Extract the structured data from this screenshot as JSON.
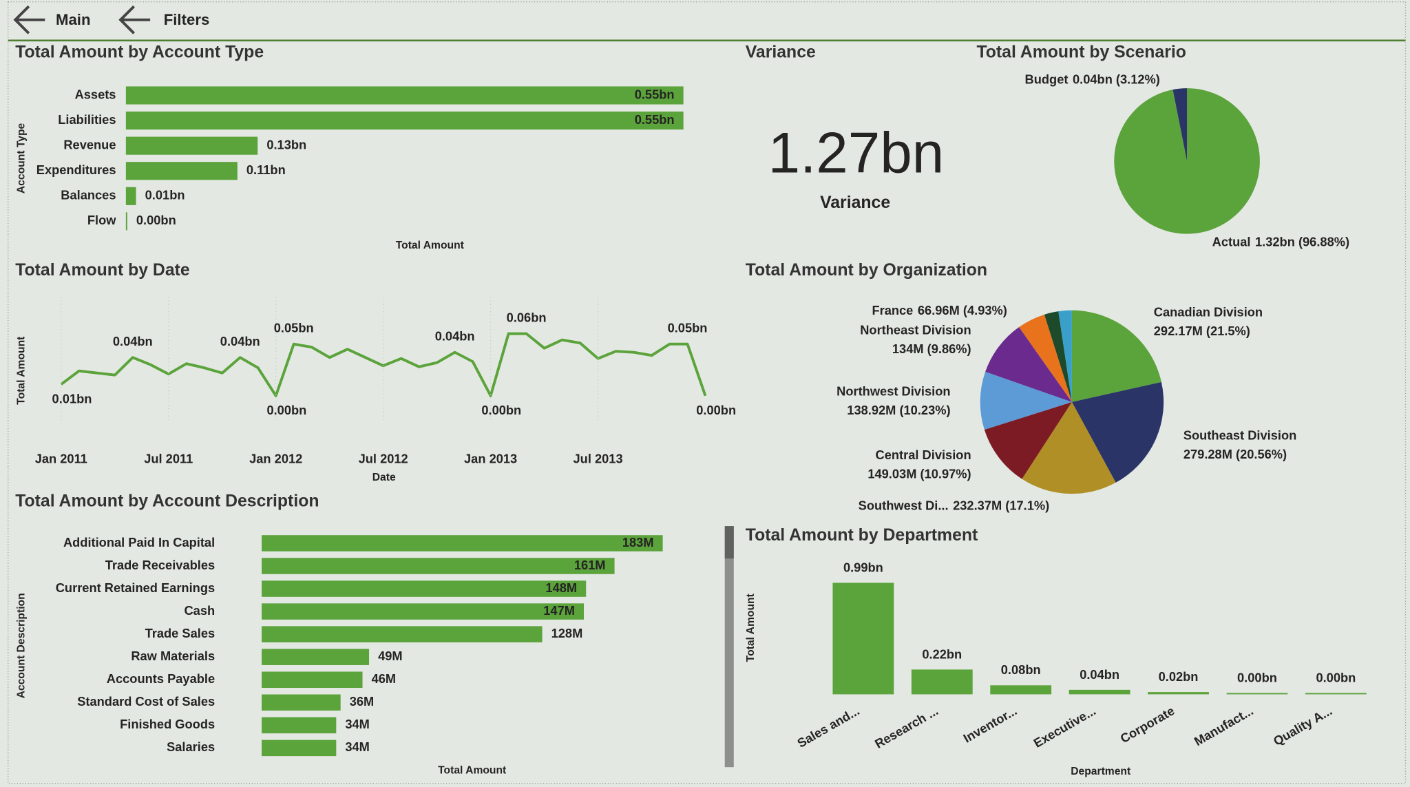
{
  "nav": [
    "Main",
    "Filters"
  ],
  "kpi": {
    "title": "Variance",
    "value": "1.27bn",
    "caption": "Variance"
  },
  "chart_data": [
    {
      "type": "hbar",
      "title": "Total Amount by Account Type",
      "y_label": "Account Type",
      "x_label": "Total Amount",
      "categories": [
        "Assets",
        "Liabilities",
        "Revenue",
        "Expenditures",
        "Balances",
        "Flow"
      ],
      "values": [
        0.55,
        0.55,
        0.13,
        0.11,
        0.01,
        0.0
      ],
      "value_labels": [
        "0.55bn",
        "0.55bn",
        "0.13bn",
        "0.11bn",
        "0.01bn",
        "0.00bn"
      ],
      "color": "#5ba33b"
    },
    {
      "type": "line",
      "title": "Total Amount by Date",
      "y_label": "Total Amount",
      "x_label": "Date",
      "categories": [
        "Jan 2011",
        null,
        null,
        null,
        null,
        null,
        "Jul 2011",
        null,
        null,
        null,
        null,
        null,
        "Jan 2012",
        null,
        null,
        null,
        null,
        null,
        "Jul 2012",
        null,
        null,
        null,
        null,
        null,
        "Jan 2013",
        null,
        null,
        null,
        null,
        null,
        "Jul 2013",
        null,
        null,
        null,
        null,
        null,
        null
      ],
      "values": [
        0.011,
        0.024,
        0.022,
        0.02,
        0.037,
        0.03,
        0.021,
        0.031,
        0.027,
        0.022,
        0.037,
        0.027,
        0.0,
        0.05,
        0.047,
        0.037,
        0.045,
        0.037,
        0.029,
        0.036,
        0.028,
        0.032,
        0.042,
        0.033,
        0.0,
        0.06,
        0.06,
        0.046,
        0.054,
        0.051,
        0.036,
        0.043,
        0.042,
        0.039,
        0.05,
        0.05,
        0.0
      ],
      "value_labels": [
        "0.01bn",
        null,
        null,
        null,
        "0.04bn",
        null,
        null,
        null,
        null,
        null,
        "0.04bn",
        null,
        "0.00bn",
        "0.05bn",
        null,
        null,
        null,
        null,
        null,
        null,
        null,
        null,
        "0.04bn",
        null,
        "0.00bn",
        null,
        "0.06bn",
        null,
        null,
        null,
        null,
        null,
        null,
        null,
        null,
        "0.05bn",
        "0.00bn"
      ],
      "color": "#5ba33b"
    },
    {
      "type": "hbar",
      "title": "Total Amount by Account Description",
      "y_label": "Account Description",
      "x_label": "Total Amount",
      "categories": [
        "Additional Paid In Capital",
        "Trade Receivables",
        "Current Retained Earnings",
        "Cash",
        "Trade Sales",
        "Raw Materials",
        "Accounts Payable",
        "Standard Cost of Sales",
        "Finished Goods",
        "Salaries"
      ],
      "values": [
        183,
        161,
        148,
        147,
        128,
        49,
        46,
        36,
        34,
        34
      ],
      "value_labels": [
        "183M",
        "161M",
        "148M",
        "147M",
        "128M",
        "49M",
        "46M",
        "36M",
        "34M",
        "34M"
      ],
      "color": "#5ba33b"
    },
    {
      "type": "pie",
      "title": "Total Amount by Scenario",
      "categories": [
        "Actual",
        "Budget"
      ],
      "values": [
        96.88,
        3.12
      ],
      "value_labels": [
        "1.32bn (96.88%)",
        "0.04bn (3.12%)"
      ],
      "colors": [
        "#5ba33b",
        "#2b3467"
      ]
    },
    {
      "type": "pie",
      "title": "Total Amount by Organization",
      "categories": [
        "Canadian Division",
        "Southeast Division",
        "Southwest Di...",
        "Central Division",
        "Northwest Division",
        "Northeast Division",
        "France",
        null,
        null
      ],
      "values": [
        21.5,
        20.56,
        17.1,
        10.97,
        10.23,
        9.86,
        4.93,
        2.5,
        2.35
      ],
      "value_labels": [
        "292.17M (21.5%)",
        "279.28M (20.56%)",
        "232.37M (17.1%)",
        "149.03M (10.97%)",
        "138.92M (10.23%)",
        "134M (9.86%)",
        "66.96M (4.93%)",
        null,
        null
      ],
      "colors": [
        "#5ba33b",
        "#2b3467",
        "#b08f26",
        "#7d1b25",
        "#5c9bd6",
        "#6b2b8e",
        "#e8731c",
        "#1c4a2b",
        "#3aa0c9"
      ]
    },
    {
      "type": "bar",
      "title": "Total Amount by Department",
      "y_label": "Total Amount",
      "x_label": "Department",
      "categories": [
        "Sales and...",
        "Research ...",
        "Inventor...",
        "Executive...",
        "Corporate",
        "Manufact...",
        "Quality A..."
      ],
      "values": [
        0.99,
        0.22,
        0.08,
        0.04,
        0.02,
        0.0,
        0.0
      ],
      "value_labels": [
        "0.99bn",
        "0.22bn",
        "0.08bn",
        "0.04bn",
        "0.02bn",
        "0.00bn",
        "0.00bn"
      ],
      "color": "#5ba33b"
    }
  ]
}
